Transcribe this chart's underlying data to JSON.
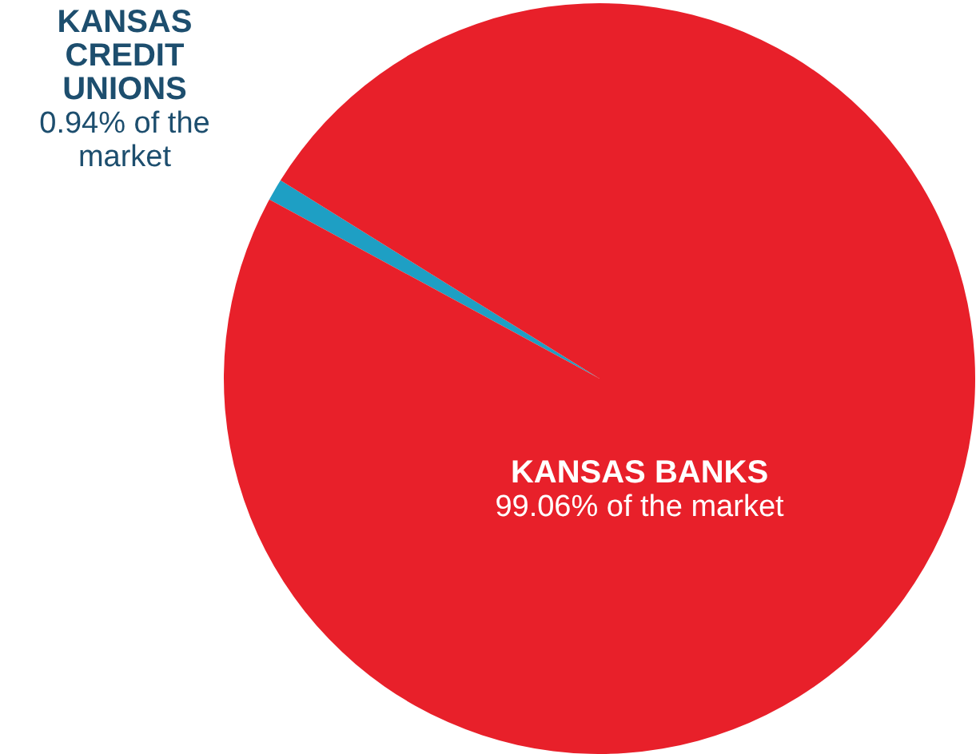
{
  "chart_data": {
    "type": "pie",
    "categories": [
      "KANSAS CREDIT UNIONS",
      "KANSAS BANKS"
    ],
    "values": [
      0.94,
      99.06
    ],
    "colors": [
      "#1e9fc4",
      "#e8202a"
    ],
    "value_labels": [
      "0.94% of the market",
      "99.06% of the market"
    ],
    "legend": false
  }
}
